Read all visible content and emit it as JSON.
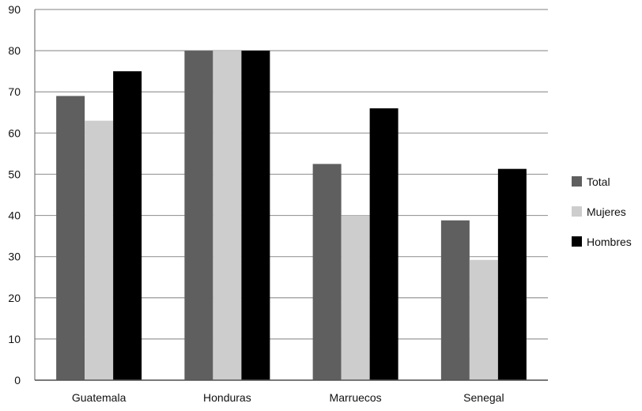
{
  "chart_data": {
    "type": "bar",
    "title": "",
    "xlabel": "",
    "ylabel": "",
    "ylim": [
      0,
      90
    ],
    "yticks": [
      0,
      10,
      20,
      30,
      40,
      50,
      60,
      70,
      80,
      90
    ],
    "grid": true,
    "legend_position": "right",
    "categories": [
      "Guatemala",
      "Honduras",
      "Marruecos",
      "Senegal"
    ],
    "series": [
      {
        "name": "Total",
        "values": [
          69,
          80,
          52.5,
          38.8
        ],
        "color": "#5f5f5f"
      },
      {
        "name": "Mujeres",
        "values": [
          63,
          80,
          40,
          29.2
        ],
        "color": "#cdcdcd"
      },
      {
        "name": "Hombres",
        "values": [
          75,
          80,
          66,
          51.3
        ],
        "color": "#000000"
      }
    ]
  }
}
